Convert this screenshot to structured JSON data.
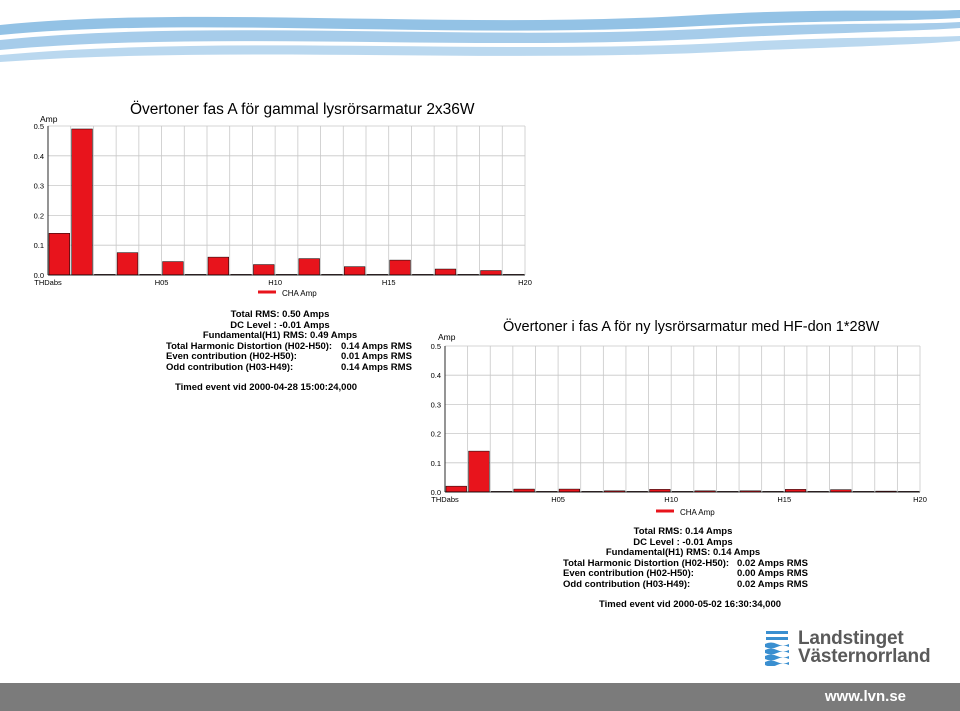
{
  "chart_data": [
    {
      "type": "bar",
      "title": "Övertoner fas A för gammal lysrörsarmatur 2x36W",
      "ylabel": "Amp",
      "ylim": [
        0,
        0.5
      ],
      "yticks": [
        "0.0",
        "0.1",
        "0.2",
        "0.3",
        "0.4",
        "0.5"
      ],
      "xtick_labels": [
        "THDabs",
        "H05",
        "H10",
        "H15",
        "H20"
      ],
      "legend": "CHA Amp",
      "legend_position": "bottom",
      "grid": true,
      "categories": [
        "THDabs",
        "H01",
        "H02",
        "H03",
        "H04",
        "H05",
        "H06",
        "H07",
        "H08",
        "H09",
        "H10",
        "H11",
        "H12",
        "H13",
        "H14",
        "H15",
        "H16",
        "H17",
        "H18",
        "H19",
        "H20"
      ],
      "values": [
        0.14,
        0.49,
        0.0,
        0.075,
        0.0,
        0.045,
        0.0,
        0.06,
        0.0,
        0.035,
        0.0,
        0.055,
        0.0,
        0.028,
        0.0,
        0.05,
        0.0,
        0.02,
        0.0,
        0.015,
        0.0
      ],
      "color": "#e8141c"
    },
    {
      "type": "bar",
      "title": "Övertoner i fas A för ny lysrörsarmatur med HF-don 1*28W",
      "ylabel": "Amp",
      "ylim": [
        0,
        0.5
      ],
      "yticks": [
        "0.0",
        "0.1",
        "0.2",
        "0.3",
        "0.4",
        "0.5"
      ],
      "xtick_labels": [
        "THDabs",
        "H05",
        "H10",
        "H15",
        "H20"
      ],
      "legend": "CHA Amp",
      "legend_position": "bottom",
      "grid": true,
      "categories": [
        "THDabs",
        "H01",
        "H02",
        "H03",
        "H04",
        "H05",
        "H06",
        "H07",
        "H08",
        "H09",
        "H10",
        "H11",
        "H12",
        "H13",
        "H14",
        "H15",
        "H16",
        "H17",
        "H18",
        "H19",
        "H20"
      ],
      "values": [
        0.02,
        0.14,
        0.0,
        0.01,
        0.0,
        0.01,
        0.0,
        0.004,
        0.0,
        0.009,
        0.0,
        0.004,
        0.0,
        0.004,
        0.0,
        0.009,
        0.0,
        0.008,
        0.0,
        0.003,
        0.0
      ],
      "color": "#e8141c"
    }
  ],
  "stats1": {
    "total_rms": "Total RMS: 0.50 Amps",
    "dc_level": "DC Level : -0.01 Amps",
    "fundamental": "Fundamental(H1) RMS: 0.49 Amps",
    "thd_label": "Total Harmonic Distortion (H02-H50):",
    "thd_value": "0.14 Amps RMS",
    "even_label": "Even contribution (H02-H50):",
    "even_value": "0.01 Amps RMS",
    "odd_label": "Odd  contribution (H03-H49):",
    "odd_value": "0.14 Amps RMS",
    "event": "Timed event vid 2000-04-28 15:00:24,000"
  },
  "stats2": {
    "total_rms": "Total RMS: 0.14 Amps",
    "dc_level": "DC Level : -0.01 Amps",
    "fundamental": "Fundamental(H1) RMS: 0.14 Amps",
    "thd_label": "Total Harmonic Distortion (H02-H50):",
    "thd_value": "0.02 Amps RMS",
    "even_label": "Even contribution (H02-H50):",
    "even_value": "0.00 Amps RMS",
    "odd_label": "Odd  contribution (H03-H49):",
    "odd_value": "0.02 Amps RMS",
    "event": "Timed event vid 2000-05-02 16:30:34,000"
  },
  "logo": {
    "line1": "Landstinget",
    "line2": "Västernorrland",
    "icon": "waves-logo-icon",
    "color": "#3a8fd0"
  },
  "footer": {
    "url": "www.lvn.se",
    "bar_color": "#7b7b7b"
  },
  "header": {
    "decoration": "blue-waves-banner",
    "color": "#3a8fd0"
  }
}
